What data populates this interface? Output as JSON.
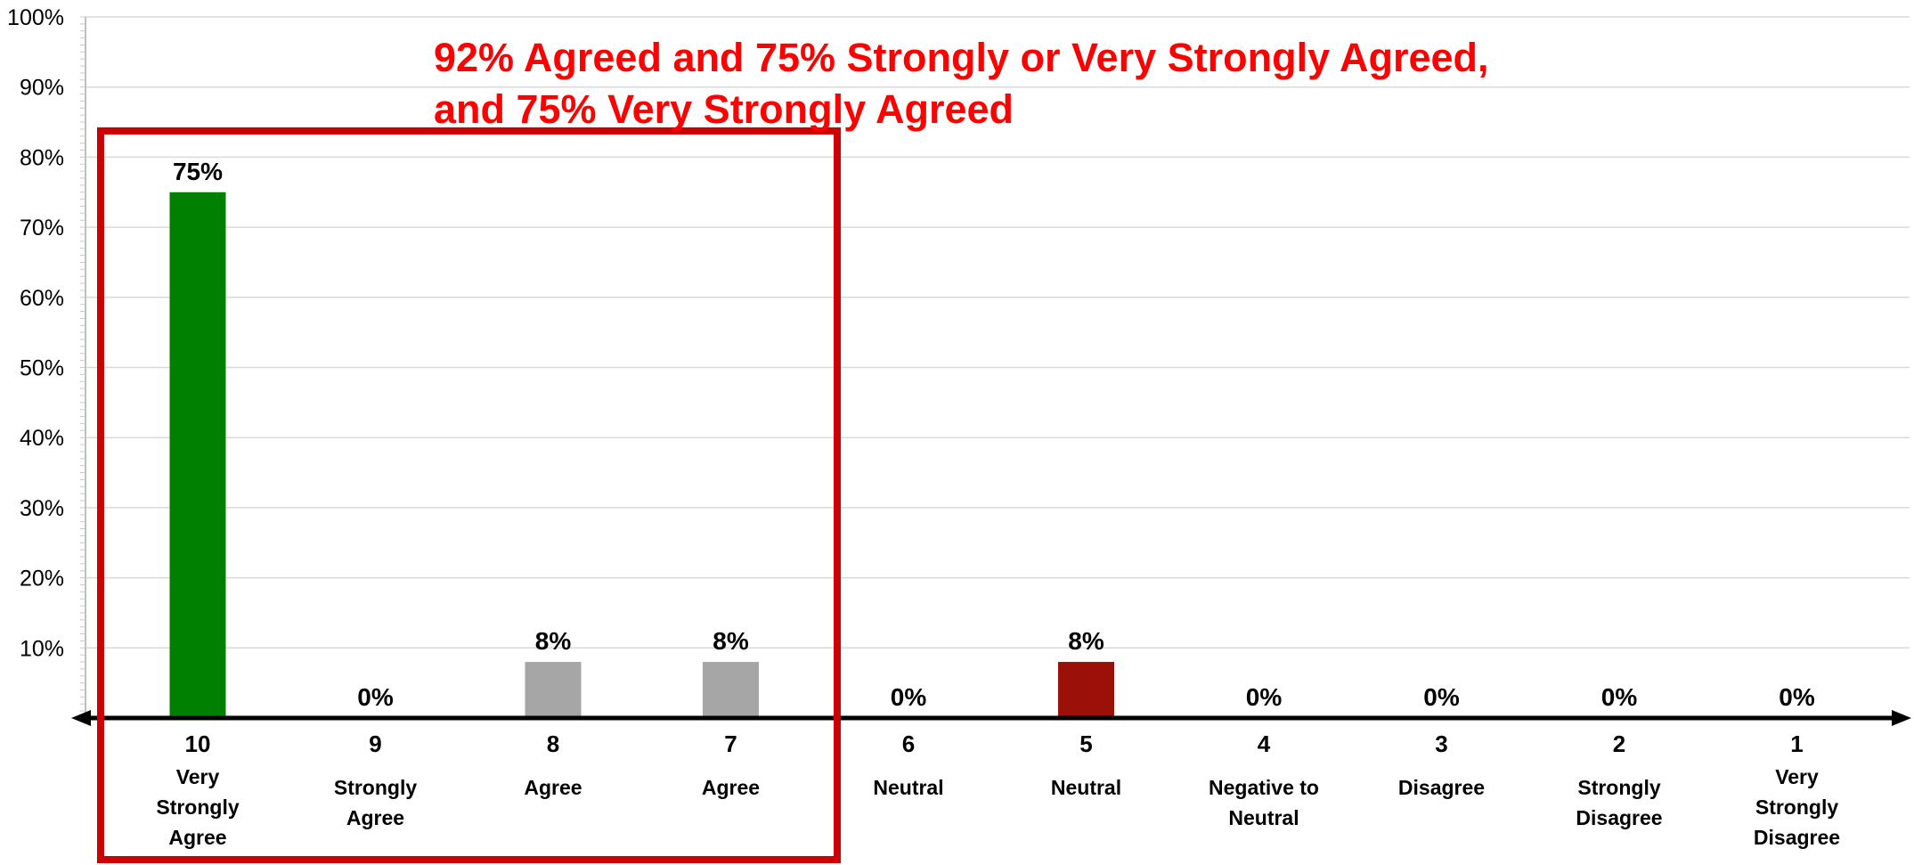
{
  "headline": {
    "line1": "92% Agreed and 75% Strongly or Very Strongly Agreed,",
    "line2": "and 75% Very Strongly Agreed"
  },
  "colors": {
    "green": "#008000",
    "gray": "#a6a6a6",
    "darkred": "#9b1008",
    "highlight": "#cc0000",
    "headline": "#ff0000",
    "grid": "#d9d9d9",
    "axis": "#000000"
  },
  "chart_data": {
    "type": "bar",
    "title": "",
    "xlabel": "",
    "ylabel": "",
    "ylim": [
      0,
      100
    ],
    "yticks": [
      "10%",
      "20%",
      "30%",
      "40%",
      "50%",
      "60%",
      "70%",
      "80%",
      "90%",
      "100%"
    ],
    "grid": true,
    "legend": "none",
    "categories": [
      {
        "num": "10",
        "desc": [
          "Very",
          "Strongly",
          "Agree"
        ],
        "value": 75,
        "label": "75%",
        "color": "green"
      },
      {
        "num": "9",
        "desc": [
          "Strongly",
          "Agree"
        ],
        "value": 0,
        "label": "0%",
        "color": "gray"
      },
      {
        "num": "8",
        "desc": [
          "Agree"
        ],
        "value": 8,
        "label": "8%",
        "color": "gray"
      },
      {
        "num": "7",
        "desc": [
          "Agree"
        ],
        "value": 8,
        "label": "8%",
        "color": "gray"
      },
      {
        "num": "6",
        "desc": [
          "Neutral"
        ],
        "value": 0,
        "label": "0%",
        "color": "gray"
      },
      {
        "num": "5",
        "desc": [
          "Neutral"
        ],
        "value": 8,
        "label": "8%",
        "color": "darkred"
      },
      {
        "num": "4",
        "desc": [
          "Negative to",
          "Neutral"
        ],
        "value": 0,
        "label": "0%",
        "color": "gray"
      },
      {
        "num": "3",
        "desc": [
          "Disagree"
        ],
        "value": 0,
        "label": "0%",
        "color": "gray"
      },
      {
        "num": "2",
        "desc": [
          "Strongly",
          "Disagree"
        ],
        "value": 0,
        "label": "0%",
        "color": "gray"
      },
      {
        "num": "1",
        "desc": [
          "Very",
          "Strongly",
          "Disagree"
        ],
        "value": 0,
        "label": "0%",
        "color": "gray"
      }
    ],
    "annotation": {
      "type": "highlight-box",
      "covers": [
        "10",
        "9",
        "8",
        "7"
      ]
    }
  }
}
